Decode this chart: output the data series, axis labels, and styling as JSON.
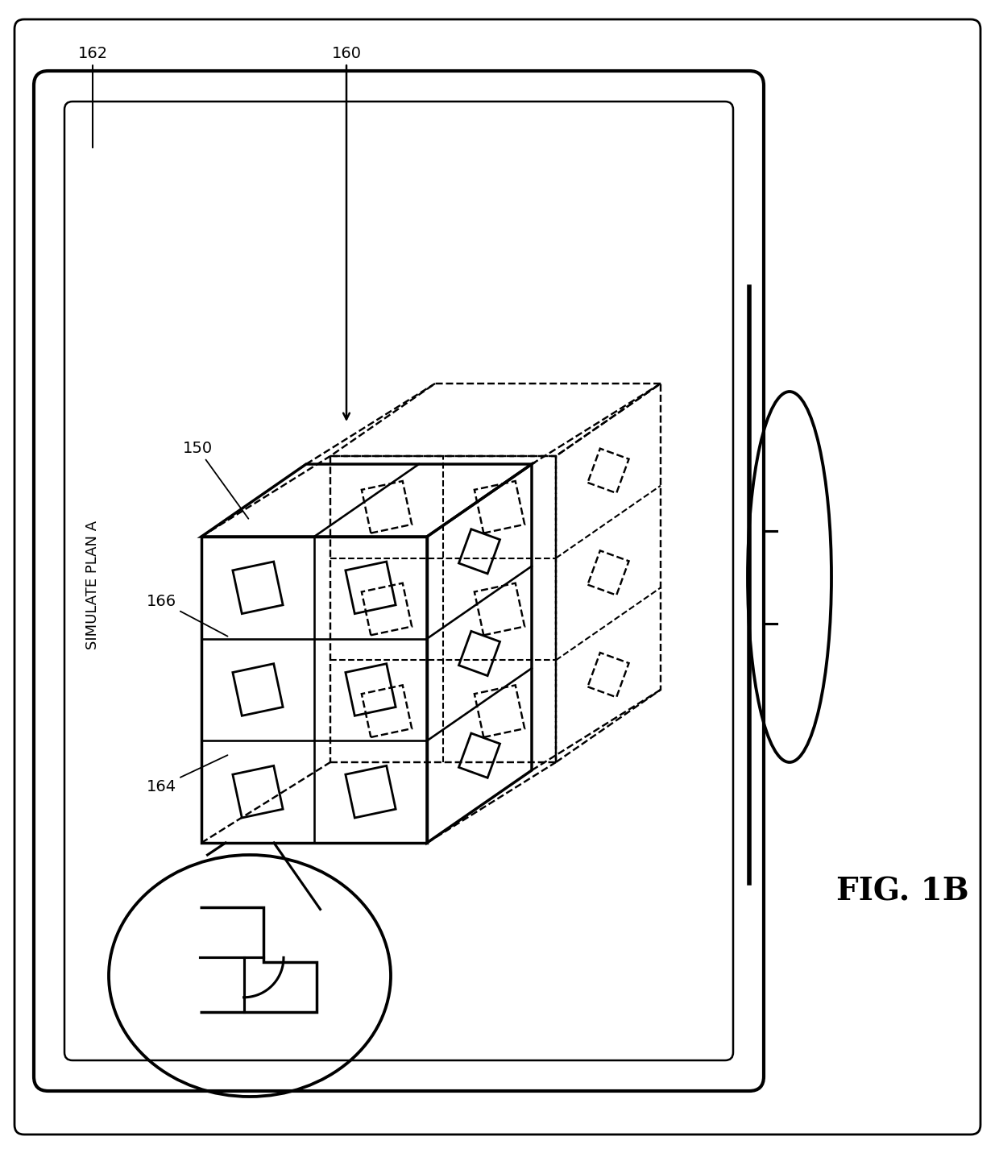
{
  "bg_color": "#ffffff",
  "line_color": "#000000",
  "fig_label": "FIG. 1B",
  "screen_label": "SIMULATE PLAN A",
  "figsize": [
    12.4,
    14.26
  ],
  "dpi": 100,
  "label_fontsize": 14,
  "figlabel_fontsize": 28
}
